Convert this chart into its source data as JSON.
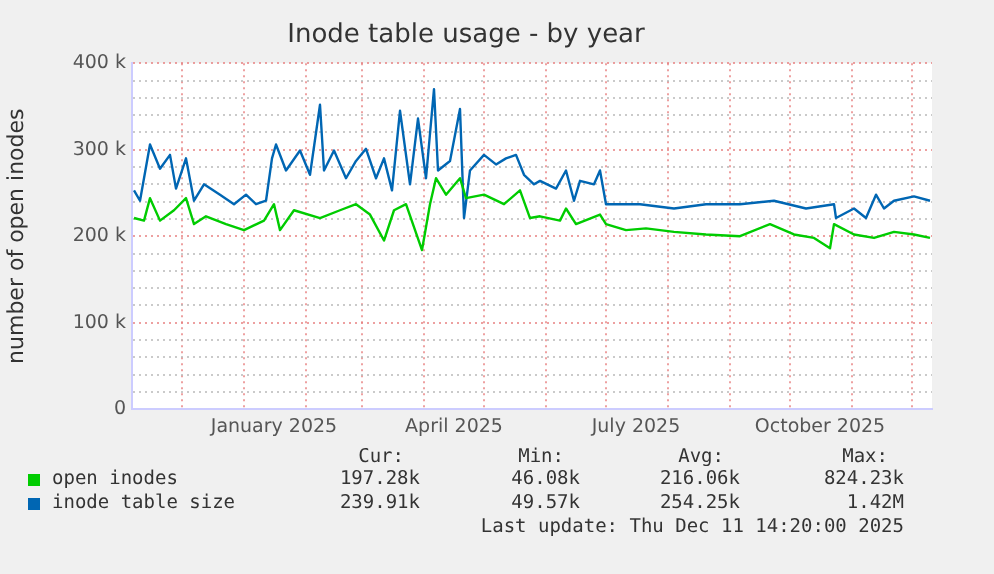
{
  "chart_data": {
    "type": "line",
    "title": "Inode table usage - by year",
    "ylabel": "number of open inodes",
    "xlim": [
      "2024-11-06",
      "2025-12-11"
    ],
    "xticks": [
      {
        "value": "2024-12-01",
        "label": null
      },
      {
        "value": "2025-01-01",
        "label": null
      },
      {
        "value": "2025-01-16",
        "label": "January 2025"
      },
      {
        "value": "2025-02-01",
        "label": null
      },
      {
        "value": "2025-03-01",
        "label": null
      },
      {
        "value": "2025-04-01",
        "label": null
      },
      {
        "value": "2025-04-16",
        "label": "April 2025"
      },
      {
        "value": "2025-05-01",
        "label": null
      },
      {
        "value": "2025-06-01",
        "label": null
      },
      {
        "value": "2025-07-01",
        "label": null
      },
      {
        "value": "2025-07-16",
        "label": "July 2025"
      },
      {
        "value": "2025-08-01",
        "label": null
      },
      {
        "value": "2025-09-01",
        "label": null
      },
      {
        "value": "2025-10-01",
        "label": null
      },
      {
        "value": "2025-10-16",
        "label": "October 2025"
      },
      {
        "value": "2025-11-01",
        "label": null
      },
      {
        "value": "2025-12-01",
        "label": null
      }
    ],
    "ylim": [
      0,
      400000
    ],
    "yticks": [
      {
        "value": 0,
        "label": "0"
      },
      {
        "value": 20000,
        "label": null
      },
      {
        "value": 40000,
        "label": null
      },
      {
        "value": 60000,
        "label": null
      },
      {
        "value": 80000,
        "label": null
      },
      {
        "value": 100000,
        "label": "100 k"
      },
      {
        "value": 120000,
        "label": null
      },
      {
        "value": 140000,
        "label": null
      },
      {
        "value": 160000,
        "label": null
      },
      {
        "value": 180000,
        "label": null
      },
      {
        "value": 200000,
        "label": "200 k"
      },
      {
        "value": 220000,
        "label": null
      },
      {
        "value": 240000,
        "label": null
      },
      {
        "value": 260000,
        "label": null
      },
      {
        "value": 280000,
        "label": null
      },
      {
        "value": 300000,
        "label": "300 k"
      },
      {
        "value": 320000,
        "label": null
      },
      {
        "value": 340000,
        "label": null
      },
      {
        "value": 360000,
        "label": null
      },
      {
        "value": 380000,
        "label": null
      },
      {
        "value": 400000,
        "label": "400 k"
      }
    ],
    "grid": true,
    "legend": "bottom",
    "marker": "none",
    "line_style": "solid",
    "series": [
      {
        "name": "open inodes",
        "color": "#00cc00",
        "x": [
          "2024-11-07",
          "2024-11-12",
          "2024-11-15",
          "2024-11-20",
          "2024-11-27",
          "2024-12-03",
          "2024-12-07",
          "2024-12-13",
          "2024-12-23",
          "2025-01-01",
          "2025-01-11",
          "2025-01-16",
          "2025-01-19",
          "2025-01-26",
          "2025-02-08",
          "2025-02-18",
          "2025-02-26",
          "2025-03-05",
          "2025-03-12",
          "2025-03-17",
          "2025-03-23",
          "2025-03-31",
          "2025-04-04",
          "2025-04-07",
          "2025-04-12",
          "2025-04-19",
          "2025-04-22",
          "2025-05-01",
          "2025-05-11",
          "2025-05-19",
          "2025-05-24",
          "2025-05-29",
          "2025-06-08",
          "2025-06-11",
          "2025-06-16",
          "2025-06-28",
          "2025-07-01",
          "2025-07-11",
          "2025-07-21",
          "2025-08-04",
          "2025-08-20",
          "2025-09-06",
          "2025-09-21",
          "2025-10-03",
          "2025-10-13",
          "2025-10-21",
          "2025-10-23",
          "2025-11-02",
          "2025-11-12",
          "2025-11-22",
          "2025-12-02",
          "2025-12-10"
        ],
        "values": [
          221000,
          218000,
          244000,
          218000,
          230000,
          244000,
          214000,
          223000,
          214000,
          207000,
          218000,
          237000,
          207000,
          230000,
          221000,
          230000,
          237000,
          225000,
          195000,
          230000,
          237000,
          184000,
          237000,
          267000,
          248000,
          267000,
          244000,
          248000,
          237000,
          253000,
          221000,
          223000,
          218000,
          232000,
          214000,
          225000,
          214000,
          207000,
          209000,
          205000,
          202000,
          200000,
          214000,
          202000,
          198000,
          186000,
          214000,
          202000,
          198000,
          205000,
          202000,
          198000
        ]
      },
      {
        "name": "inode table size",
        "color": "#0066b3",
        "x": [
          "2024-11-07",
          "2024-11-10",
          "2024-11-15",
          "2024-11-20",
          "2024-11-25",
          "2024-11-28",
          "2024-12-03",
          "2024-12-07",
          "2024-12-12",
          "2024-12-20",
          "2024-12-27",
          "2025-01-02",
          "2025-01-07",
          "2025-01-12",
          "2025-01-15",
          "2025-01-17",
          "2025-01-22",
          "2025-01-29",
          "2025-02-03",
          "2025-02-08",
          "2025-02-10",
          "2025-02-15",
          "2025-02-21",
          "2025-02-26",
          "2025-03-03",
          "2025-03-08",
          "2025-03-12",
          "2025-03-16",
          "2025-03-20",
          "2025-03-25",
          "2025-03-29",
          "2025-04-02",
          "2025-04-06",
          "2025-04-08",
          "2025-04-14",
          "2025-04-19",
          "2025-04-21",
          "2025-04-24",
          "2025-05-01",
          "2025-05-07",
          "2025-05-12",
          "2025-05-17",
          "2025-05-21",
          "2025-05-26",
          "2025-05-29",
          "2025-06-06",
          "2025-06-11",
          "2025-06-15",
          "2025-06-18",
          "2025-06-25",
          "2025-06-28",
          "2025-07-01",
          "2025-07-18",
          "2025-08-04",
          "2025-08-20",
          "2025-09-06",
          "2025-09-23",
          "2025-10-09",
          "2025-10-23",
          "2025-10-24",
          "2025-11-02",
          "2025-11-08",
          "2025-11-13",
          "2025-11-17",
          "2025-11-22",
          "2025-12-02",
          "2025-12-10"
        ],
        "values": [
          253000,
          241000,
          306000,
          278000,
          294000,
          255000,
          290000,
          241000,
          260000,
          248000,
          237000,
          248000,
          237000,
          241000,
          290000,
          306000,
          276000,
          299000,
          271000,
          352000,
          276000,
          299000,
          267000,
          287000,
          301000,
          267000,
          290000,
          253000,
          345000,
          260000,
          336000,
          267000,
          370000,
          276000,
          287000,
          347000,
          221000,
          276000,
          294000,
          283000,
          290000,
          294000,
          271000,
          260000,
          264000,
          255000,
          276000,
          241000,
          264000,
          260000,
          276000,
          237000,
          237000,
          232000,
          237000,
          237000,
          241000,
          232000,
          237000,
          221000,
          232000,
          221000,
          248000,
          232000,
          241000,
          246000,
          241000
        ]
      }
    ],
    "annotations": [
      "Cur:",
      "Min:",
      "Avg:",
      "Max:",
      "197.28k",
      "46.08k",
      "216.06k",
      "824.23k",
      "239.91k",
      "49.57k",
      "254.25k",
      "1.42M",
      "Last update: Thu Dec 11 14:20:00 2025"
    ]
  }
}
